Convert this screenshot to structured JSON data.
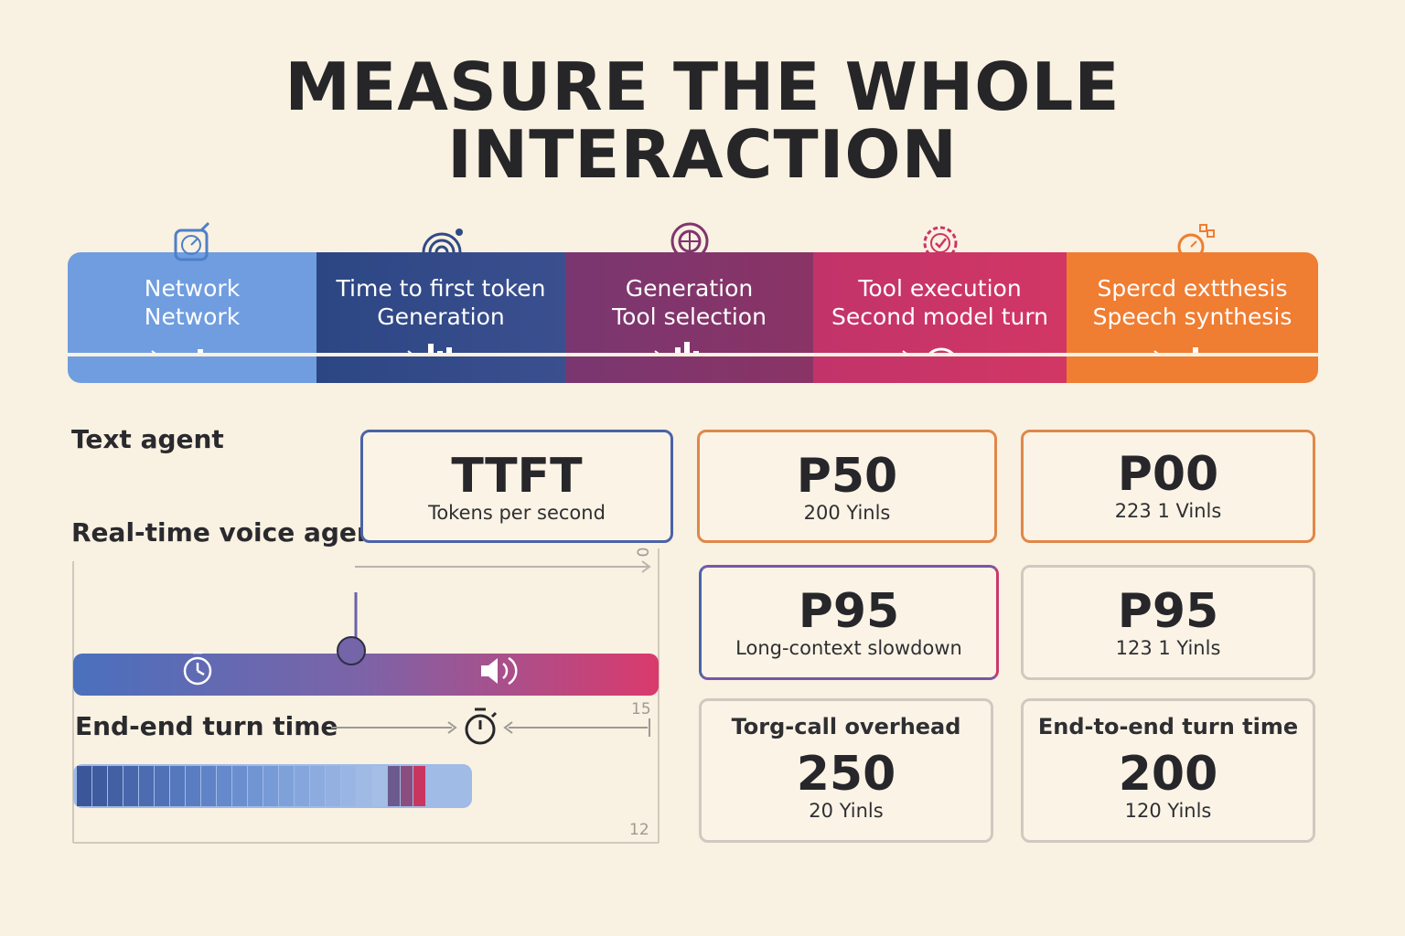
{
  "title": {
    "line1": "MEASURE THE WHOLE",
    "line2": "INTERACTION"
  },
  "pipeline": {
    "stages": [
      {
        "line1": "Network",
        "line2": "Network",
        "icon": "stopwatch-icon",
        "flow_icon": "signal-dots-icon",
        "color": "#6f9de0"
      },
      {
        "line1": "Time to first token",
        "line2": "Generation",
        "icon": "broadcast-icon",
        "flow_icon": "bars-icon",
        "color": "#2f4a86"
      },
      {
        "line1": "Generation",
        "line2": "Tool selection",
        "icon": "globe-target-icon",
        "flow_icon": "bars-icon",
        "color": "#80356e"
      },
      {
        "line1": "Tool execution",
        "line2": "Second model turn",
        "icon": "check-gauge-icon",
        "flow_icon": "headset-icon",
        "color": "#cc3466"
      },
      {
        "line1": "Sperc​d extthesis",
        "line2": "Speech synthesis",
        "icon": "stopwatch-plus-icon",
        "flow_icon": "eq-bars-icon",
        "color": "#ef7d32"
      }
    ]
  },
  "labels": {
    "text_agent": "Text agent",
    "voice_agent": "Real-time voice agent",
    "end_turn": "End-end turn time"
  },
  "axis_ticks": {
    "top": "0",
    "middle": "15",
    "bottom": "12"
  },
  "metrics": {
    "ttft": {
      "value": "TTFT",
      "sub": "Tokens per second",
      "color": "#4a63a8"
    },
    "p50": {
      "value": "P50",
      "sub": "200 Yinls",
      "color": "#e0874a"
    },
    "p00": {
      "value": "P00",
      "sub": "223 1  Vinls",
      "color": "#e0874a"
    },
    "p95a": {
      "value": "P95",
      "sub": "Long-context slowdown",
      "color": "#7a55a8"
    },
    "p95b": {
      "value": "P95",
      "sub": "123 1  Yinls",
      "color": "#cfc9c0"
    },
    "tool_call": {
      "header": "Torg-call overhead",
      "value": "250",
      "sub": "20 Yinls",
      "color": "#cfc9c0"
    },
    "end_to_end": {
      "header": "End-to-end turn time",
      "value": "200",
      "sub": "120 Yinls",
      "color": "#cfc9c0"
    }
  }
}
